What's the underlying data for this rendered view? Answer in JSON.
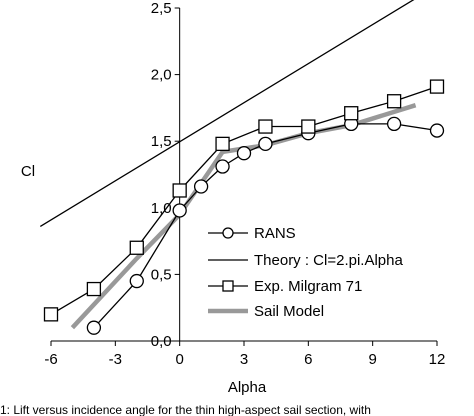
{
  "chart_data": {
    "type": "line",
    "title": "",
    "xlabel": "Alpha",
    "ylabel": "Cl",
    "xlim": [
      -6,
      12
    ],
    "ylim": [
      0.0,
      2.5
    ],
    "xticks": [
      "-6",
      "-3",
      "0",
      "3",
      "6",
      "9",
      "12"
    ],
    "yticks": [
      "0,0",
      "0,5",
      "1,0",
      "1,5",
      "2,0",
      "2,5"
    ],
    "grid": false,
    "legend_position": "bottom-right",
    "series": [
      {
        "name": "RANS",
        "marker": "circle",
        "color": "#000000",
        "x": [
          -4,
          -2,
          0,
          1,
          2,
          3,
          4,
          6,
          8,
          10,
          12
        ],
        "y": [
          0.1,
          0.45,
          0.98,
          1.16,
          1.31,
          1.41,
          1.48,
          1.56,
          1.63,
          1.63,
          1.58
        ]
      },
      {
        "name": "Theory : Cl=2.pi.Alpha",
        "marker": "none",
        "color": "#000000",
        "x": [
          -6.5,
          11.5
        ],
        "y": [
          0.86,
          2.62
        ]
      },
      {
        "name": "Exp. Milgram 71",
        "marker": "square",
        "color": "#000000",
        "x": [
          -6,
          -4,
          -2,
          0,
          2,
          4,
          6,
          8,
          10,
          12
        ],
        "y": [
          0.2,
          0.39,
          0.7,
          1.13,
          1.48,
          1.61,
          1.61,
          1.71,
          1.8,
          1.91
        ]
      },
      {
        "name": "Sail Model",
        "marker": "none",
        "color": "#999999",
        "x": [
          -5,
          -2,
          0,
          2,
          4,
          6,
          8,
          11
        ],
        "y": [
          0.1,
          0.62,
          0.95,
          1.42,
          1.47,
          1.56,
          1.62,
          1.77
        ]
      }
    ]
  },
  "caption": "1: Lift versus incidence angle for the thin high-aspect sail section, with"
}
